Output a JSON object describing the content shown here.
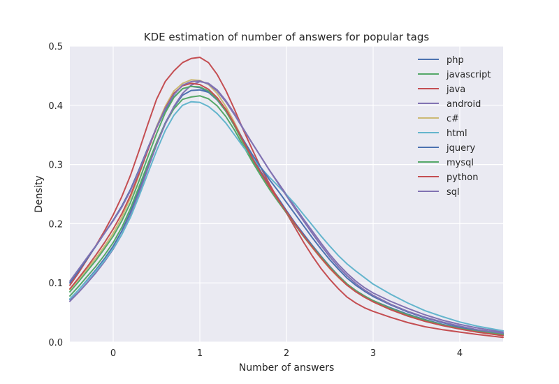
{
  "chart_data": {
    "type": "line",
    "title": "KDE estimation of number of answers for popular tags",
    "xlabel": "Number of answers",
    "ylabel": "Density",
    "xlim": [
      -0.5,
      4.5
    ],
    "ylim": [
      0.0,
      0.5
    ],
    "xticks": [
      0,
      1,
      2,
      3,
      4
    ],
    "xtick_labels": [
      "0",
      "1",
      "2",
      "3",
      "4"
    ],
    "yticks": [
      0.0,
      0.1,
      0.2,
      0.3,
      0.4,
      0.5
    ],
    "ytick_labels": [
      "0.0",
      "0.1",
      "0.2",
      "0.3",
      "0.4",
      "0.5"
    ],
    "grid": true,
    "legend_position": "top-right",
    "x": [
      -0.5,
      -0.4,
      -0.3,
      -0.2,
      -0.1,
      0.0,
      0.1,
      0.2,
      0.3,
      0.4,
      0.5,
      0.6,
      0.7,
      0.8,
      0.9,
      1.0,
      1.1,
      1.2,
      1.3,
      1.4,
      1.5,
      1.6,
      1.7,
      1.8,
      1.9,
      2.0,
      2.1,
      2.2,
      2.3,
      2.4,
      2.5,
      2.6,
      2.7,
      2.8,
      2.9,
      3.0,
      3.2,
      3.4,
      3.6,
      3.8,
      4.0,
      4.2,
      4.5
    ],
    "series": [
      {
        "name": "php",
        "color": "#4c72b0",
        "values": [
          0.072,
          0.088,
          0.105,
          0.122,
          0.141,
          0.162,
          0.188,
          0.22,
          0.258,
          0.298,
          0.336,
          0.37,
          0.397,
          0.417,
          0.425,
          0.426,
          0.422,
          0.411,
          0.393,
          0.369,
          0.341,
          0.314,
          0.289,
          0.265,
          0.244,
          0.222,
          0.201,
          0.182,
          0.163,
          0.145,
          0.128,
          0.112,
          0.098,
          0.087,
          0.078,
          0.07,
          0.058,
          0.047,
          0.038,
          0.03,
          0.024,
          0.019,
          0.014
        ]
      },
      {
        "name": "javascript",
        "color": "#55a868",
        "values": [
          0.078,
          0.094,
          0.111,
          0.128,
          0.147,
          0.168,
          0.194,
          0.226,
          0.263,
          0.301,
          0.337,
          0.369,
          0.394,
          0.41,
          0.414,
          0.416,
          0.411,
          0.399,
          0.381,
          0.358,
          0.332,
          0.306,
          0.282,
          0.259,
          0.238,
          0.218,
          0.198,
          0.179,
          0.161,
          0.144,
          0.127,
          0.112,
          0.098,
          0.087,
          0.078,
          0.07,
          0.057,
          0.046,
          0.037,
          0.029,
          0.023,
          0.018,
          0.013
        ]
      },
      {
        "name": "java",
        "color": "#c44e52",
        "values": [
          0.096,
          0.117,
          0.14,
          0.163,
          0.188,
          0.215,
          0.246,
          0.282,
          0.324,
          0.368,
          0.41,
          0.44,
          0.458,
          0.472,
          0.479,
          0.481,
          0.472,
          0.452,
          0.425,
          0.393,
          0.359,
          0.327,
          0.296,
          0.268,
          0.242,
          0.218,
          0.193,
          0.168,
          0.145,
          0.124,
          0.106,
          0.09,
          0.076,
          0.066,
          0.058,
          0.052,
          0.042,
          0.033,
          0.026,
          0.021,
          0.017,
          0.013,
          0.008
        ]
      },
      {
        "name": "android",
        "color": "#8172b2",
        "values": [
          0.069,
          0.084,
          0.1,
          0.117,
          0.136,
          0.157,
          0.182,
          0.214,
          0.252,
          0.293,
          0.333,
          0.368,
          0.398,
          0.42,
          0.434,
          0.44,
          0.437,
          0.426,
          0.408,
          0.386,
          0.361,
          0.337,
          0.314,
          0.291,
          0.27,
          0.249,
          0.228,
          0.207,
          0.187,
          0.167,
          0.148,
          0.131,
          0.116,
          0.103,
          0.092,
          0.083,
          0.069,
          0.057,
          0.046,
          0.037,
          0.03,
          0.024,
          0.017
        ]
      },
      {
        "name": "c#",
        "color": "#ccb974",
        "values": [
          0.089,
          0.106,
          0.124,
          0.142,
          0.162,
          0.184,
          0.211,
          0.244,
          0.283,
          0.324,
          0.364,
          0.398,
          0.424,
          0.437,
          0.443,
          0.442,
          0.435,
          0.42,
          0.398,
          0.371,
          0.341,
          0.312,
          0.286,
          0.262,
          0.24,
          0.219,
          0.198,
          0.178,
          0.159,
          0.141,
          0.124,
          0.109,
          0.096,
          0.085,
          0.076,
          0.068,
          0.055,
          0.044,
          0.035,
          0.028,
          0.022,
          0.017,
          0.011
        ]
      },
      {
        "name": "html",
        "color": "#64b5cd",
        "values": [
          0.073,
          0.088,
          0.104,
          0.12,
          0.138,
          0.158,
          0.182,
          0.211,
          0.247,
          0.285,
          0.323,
          0.357,
          0.383,
          0.4,
          0.406,
          0.405,
          0.398,
          0.386,
          0.37,
          0.35,
          0.33,
          0.312,
          0.295,
          0.279,
          0.264,
          0.249,
          0.233,
          0.215,
          0.197,
          0.179,
          0.162,
          0.146,
          0.132,
          0.12,
          0.109,
          0.098,
          0.081,
          0.066,
          0.053,
          0.043,
          0.034,
          0.027,
          0.019
        ]
      },
      {
        "name": "jquery",
        "color": "#4c72b0",
        "values": [
          0.1,
          0.12,
          0.141,
          0.162,
          0.184,
          0.206,
          0.23,
          0.258,
          0.292,
          0.328,
          0.362,
          0.392,
          0.414,
          0.428,
          0.432,
          0.43,
          0.422,
          0.409,
          0.39,
          0.367,
          0.342,
          0.318,
          0.296,
          0.275,
          0.256,
          0.236,
          0.216,
          0.196,
          0.176,
          0.157,
          0.139,
          0.123,
          0.108,
          0.096,
          0.086,
          0.077,
          0.063,
          0.051,
          0.041,
          0.033,
          0.026,
          0.021,
          0.015
        ]
      },
      {
        "name": "mysql",
        "color": "#55a868",
        "values": [
          0.085,
          0.102,
          0.12,
          0.138,
          0.158,
          0.179,
          0.205,
          0.236,
          0.273,
          0.313,
          0.352,
          0.387,
          0.413,
          0.428,
          0.432,
          0.431,
          0.424,
          0.41,
          0.39,
          0.365,
          0.337,
          0.31,
          0.285,
          0.262,
          0.24,
          0.219,
          0.198,
          0.178,
          0.16,
          0.142,
          0.126,
          0.111,
          0.098,
          0.087,
          0.077,
          0.069,
          0.056,
          0.045,
          0.036,
          0.029,
          0.023,
          0.018,
          0.012
        ]
      },
      {
        "name": "python",
        "color": "#c44e52",
        "values": [
          0.09,
          0.108,
          0.127,
          0.147,
          0.168,
          0.191,
          0.217,
          0.248,
          0.285,
          0.324,
          0.362,
          0.395,
          0.42,
          0.433,
          0.437,
          0.435,
          0.427,
          0.413,
          0.393,
          0.368,
          0.34,
          0.312,
          0.287,
          0.263,
          0.241,
          0.22,
          0.199,
          0.179,
          0.16,
          0.142,
          0.125,
          0.11,
          0.096,
          0.085,
          0.076,
          0.068,
          0.055,
          0.044,
          0.035,
          0.028,
          0.022,
          0.017,
          0.011
        ]
      },
      {
        "name": "sql",
        "color": "#8172b2",
        "values": [
          0.103,
          0.123,
          0.143,
          0.163,
          0.184,
          0.205,
          0.228,
          0.256,
          0.29,
          0.327,
          0.363,
          0.394,
          0.418,
          0.434,
          0.44,
          0.441,
          0.436,
          0.424,
          0.406,
          0.384,
          0.36,
          0.337,
          0.314,
          0.291,
          0.269,
          0.247,
          0.225,
          0.204,
          0.183,
          0.163,
          0.144,
          0.127,
          0.112,
          0.099,
          0.088,
          0.079,
          0.064,
          0.052,
          0.042,
          0.034,
          0.027,
          0.021,
          0.015
        ]
      }
    ]
  },
  "colors": {
    "plot_background": "#eaeaf2",
    "grid": "#ffffff",
    "text": "#262626"
  }
}
